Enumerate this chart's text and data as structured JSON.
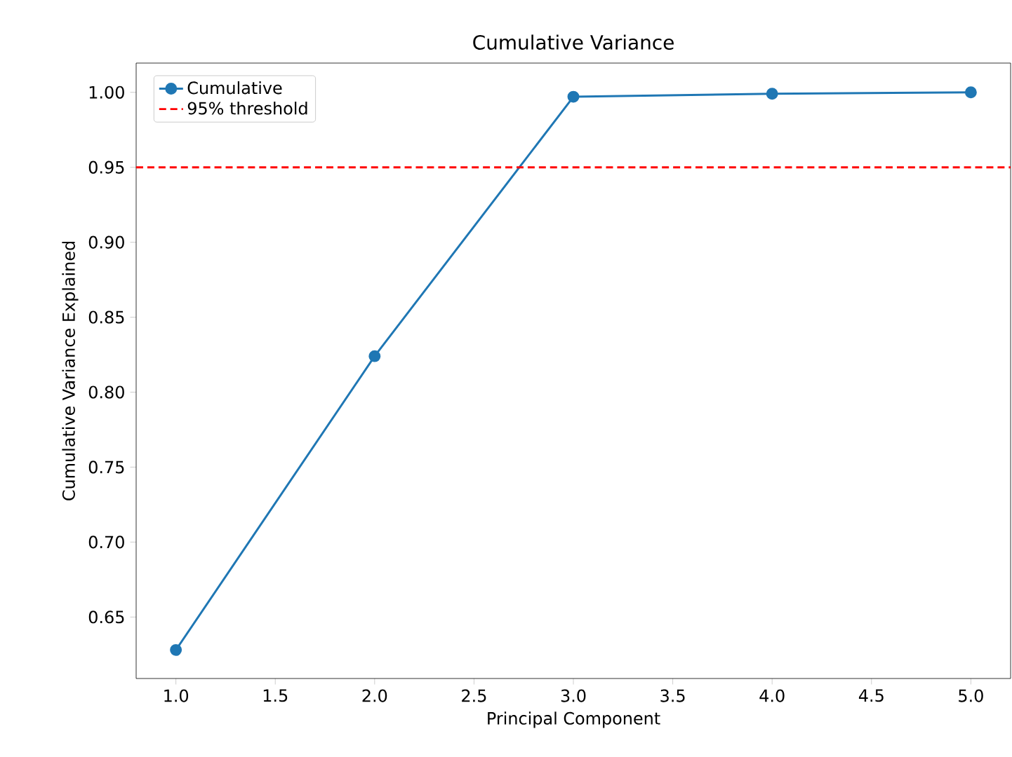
{
  "chart_data": {
    "type": "line",
    "title": "Cumulative Variance",
    "xlabel": "Principal Component",
    "ylabel": "Cumulative Variance Explained",
    "x": [
      1,
      2,
      3,
      4,
      5
    ],
    "series": [
      {
        "name": "Cumulative",
        "color": "#1f77b4",
        "values": [
          0.628,
          0.824,
          0.997,
          0.999,
          1.0
        ]
      }
    ],
    "xlim": [
      0.8,
      5.2
    ],
    "ylim": [
      0.609,
      1.0195
    ],
    "xticks": [
      {
        "value": 1,
        "label": "1.0"
      },
      {
        "value": 1.5,
        "label": "1.5"
      },
      {
        "value": 2,
        "label": "2.0"
      },
      {
        "value": 2.5,
        "label": "2.5"
      },
      {
        "value": 3,
        "label": "3.0"
      },
      {
        "value": 3.5,
        "label": "3.5"
      },
      {
        "value": 4,
        "label": "4.0"
      },
      {
        "value": 4.5,
        "label": "4.5"
      },
      {
        "value": 5,
        "label": "5.0"
      }
    ],
    "yticks": [
      {
        "value": 0.65,
        "label": "0.65"
      },
      {
        "value": 0.7,
        "label": "0.70"
      },
      {
        "value": 0.75,
        "label": "0.75"
      },
      {
        "value": 0.8,
        "label": "0.80"
      },
      {
        "value": 0.85,
        "label": "0.85"
      },
      {
        "value": 0.9,
        "label": "0.90"
      },
      {
        "value": 0.95,
        "label": "0.95"
      },
      {
        "value": 1.0,
        "label": "1.00"
      }
    ],
    "ref_lines": [
      {
        "axis": "y",
        "value": 0.95,
        "label": "95% threshold",
        "color": "#ff0000",
        "line_style": "dashed"
      }
    ],
    "legend": "top left",
    "marker": "circle",
    "line_style": "solid",
    "grid": false
  }
}
